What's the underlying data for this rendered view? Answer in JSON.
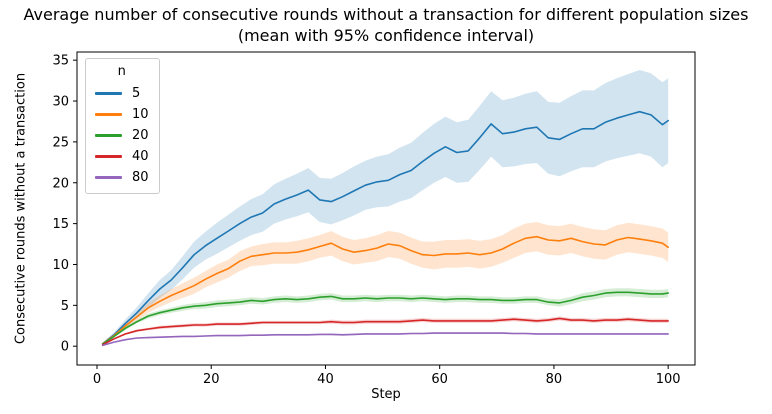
{
  "chart_data": {
    "type": "line",
    "title": "Average number of consecutive rounds without a transaction for different population sizes",
    "subtitle": "(mean with 95% confidence interval)",
    "xlabel": "Step",
    "ylabel": "Consecutive rounds without a transaction",
    "legend": {
      "title": "n",
      "position": "upper-left",
      "entries": [
        "5",
        "10",
        "20",
        "40",
        "80"
      ]
    },
    "grid": false,
    "xlim": [
      -3.5,
      104.7
    ],
    "ylim": [
      -2.3,
      36.0
    ],
    "xticks": [
      0,
      20,
      40,
      60,
      80,
      100
    ],
    "yticks": [
      0,
      5,
      10,
      15,
      20,
      25,
      30,
      35
    ],
    "band_opacity": 0.2,
    "x": [
      1,
      3,
      5,
      7,
      9,
      11,
      13,
      15,
      17,
      19,
      21,
      23,
      25,
      27,
      29,
      31,
      33,
      35,
      37,
      39,
      41,
      43,
      45,
      47,
      49,
      51,
      53,
      55,
      57,
      59,
      61,
      63,
      65,
      67,
      69,
      71,
      73,
      75,
      77,
      79,
      81,
      83,
      85,
      87,
      89,
      91,
      93,
      95,
      97,
      99,
      100
    ],
    "series": [
      {
        "name": "5",
        "color": "#1f77b4",
        "values": [
          0.3,
          1.4,
          2.8,
          4.1,
          5.6,
          7.0,
          8.1,
          9.6,
          11.2,
          12.3,
          13.2,
          14.1,
          15.0,
          15.8,
          16.3,
          17.4,
          18.0,
          18.5,
          19.1,
          17.9,
          17.7,
          18.3,
          19.0,
          19.7,
          20.1,
          20.3,
          21.0,
          21.5,
          22.6,
          23.6,
          24.4,
          23.7,
          23.9,
          25.5,
          27.2,
          26.0,
          26.2,
          26.6,
          26.8,
          25.5,
          25.3,
          26.0,
          26.6,
          26.6,
          27.4,
          27.9,
          28.3,
          28.7,
          28.3,
          27.1,
          27.6
        ],
        "ci": [
          0.1,
          0.3,
          0.5,
          0.7,
          0.9,
          1.1,
          1.2,
          1.4,
          1.6,
          1.7,
          1.9,
          2.0,
          2.1,
          2.2,
          2.3,
          2.4,
          2.5,
          2.6,
          2.7,
          2.7,
          2.8,
          2.9,
          3.0,
          3.0,
          3.1,
          3.2,
          3.3,
          3.4,
          3.5,
          3.6,
          3.7,
          3.7,
          3.8,
          3.9,
          4.0,
          4.1,
          4.2,
          4.3,
          4.4,
          4.4,
          4.5,
          4.6,
          4.7,
          4.7,
          4.8,
          4.9,
          5.0,
          5.1,
          5.1,
          5.2,
          5.2
        ]
      },
      {
        "name": "10",
        "color": "#ff7f0e",
        "values": [
          0.3,
          1.3,
          2.5,
          3.6,
          4.7,
          5.5,
          6.2,
          6.8,
          7.4,
          8.2,
          8.9,
          9.5,
          10.4,
          11.0,
          11.2,
          11.4,
          11.4,
          11.5,
          11.8,
          12.2,
          12.6,
          11.9,
          11.5,
          11.7,
          12.0,
          12.5,
          12.3,
          11.7,
          11.2,
          11.1,
          11.3,
          11.3,
          11.4,
          11.2,
          11.4,
          11.9,
          12.6,
          13.2,
          13.4,
          13.0,
          12.9,
          13.2,
          12.8,
          12.5,
          12.4,
          13.0,
          13.3,
          13.1,
          12.9,
          12.6,
          12.1
        ],
        "ci": [
          0.1,
          0.2,
          0.4,
          0.5,
          0.6,
          0.7,
          0.8,
          0.9,
          1.0,
          1.0,
          1.1,
          1.1,
          1.2,
          1.2,
          1.3,
          1.3,
          1.3,
          1.4,
          1.4,
          1.4,
          1.5,
          1.5,
          1.5,
          1.5,
          1.6,
          1.6,
          1.6,
          1.6,
          1.6,
          1.7,
          1.7,
          1.7,
          1.7,
          1.7,
          1.7,
          1.7,
          1.8,
          1.8,
          1.8,
          1.8,
          1.8,
          1.8,
          1.8,
          1.8,
          1.8,
          1.8,
          1.8,
          1.8,
          1.8,
          1.8,
          1.8
        ]
      },
      {
        "name": "20",
        "color": "#2ca02c",
        "values": [
          0.3,
          1.2,
          2.2,
          3.0,
          3.7,
          4.1,
          4.4,
          4.7,
          4.9,
          5.0,
          5.2,
          5.3,
          5.4,
          5.6,
          5.5,
          5.7,
          5.8,
          5.7,
          5.8,
          6.0,
          6.1,
          5.8,
          5.8,
          5.9,
          5.8,
          5.9,
          5.9,
          5.8,
          5.9,
          5.8,
          5.7,
          5.8,
          5.8,
          5.7,
          5.7,
          5.6,
          5.6,
          5.7,
          5.7,
          5.4,
          5.3,
          5.6,
          6.0,
          6.2,
          6.5,
          6.6,
          6.6,
          6.5,
          6.4,
          6.4,
          6.5
        ],
        "ci": [
          0.1,
          0.1,
          0.2,
          0.2,
          0.3,
          0.3,
          0.3,
          0.35,
          0.35,
          0.4,
          0.4,
          0.4,
          0.4,
          0.4,
          0.4,
          0.4,
          0.4,
          0.4,
          0.4,
          0.4,
          0.4,
          0.4,
          0.4,
          0.4,
          0.4,
          0.4,
          0.4,
          0.4,
          0.4,
          0.4,
          0.4,
          0.4,
          0.4,
          0.4,
          0.4,
          0.4,
          0.4,
          0.4,
          0.4,
          0.4,
          0.45,
          0.45,
          0.5,
          0.5,
          0.5,
          0.5,
          0.5,
          0.5,
          0.5,
          0.5,
          0.5
        ]
      },
      {
        "name": "40",
        "color": "#d62728",
        "values": [
          0.2,
          0.9,
          1.5,
          1.9,
          2.1,
          2.3,
          2.4,
          2.5,
          2.6,
          2.6,
          2.7,
          2.7,
          2.7,
          2.8,
          2.9,
          2.9,
          2.9,
          2.9,
          2.9,
          2.9,
          3.0,
          2.9,
          2.9,
          3.0,
          3.0,
          3.0,
          3.0,
          3.1,
          3.2,
          3.1,
          3.1,
          3.1,
          3.1,
          3.1,
          3.1,
          3.2,
          3.3,
          3.2,
          3.1,
          3.2,
          3.4,
          3.2,
          3.2,
          3.1,
          3.2,
          3.2,
          3.3,
          3.2,
          3.1,
          3.1,
          3.1
        ],
        "ci": [
          0.05,
          0.1,
          0.1,
          0.15,
          0.15,
          0.2,
          0.2,
          0.2,
          0.2,
          0.2,
          0.2,
          0.2,
          0.2,
          0.2,
          0.2,
          0.2,
          0.2,
          0.2,
          0.2,
          0.2,
          0.25,
          0.25,
          0.25,
          0.25,
          0.25,
          0.25,
          0.25,
          0.25,
          0.25,
          0.25,
          0.25,
          0.25,
          0.25,
          0.25,
          0.25,
          0.25,
          0.25,
          0.25,
          0.25,
          0.25,
          0.25,
          0.25,
          0.25,
          0.25,
          0.25,
          0.25,
          0.25,
          0.25,
          0.25,
          0.25,
          0.25
        ]
      },
      {
        "name": "80",
        "color": "#9467bd",
        "values": [
          0.1,
          0.5,
          0.8,
          1.0,
          1.05,
          1.1,
          1.15,
          1.2,
          1.2,
          1.25,
          1.3,
          1.3,
          1.3,
          1.35,
          1.35,
          1.4,
          1.4,
          1.4,
          1.4,
          1.45,
          1.45,
          1.4,
          1.45,
          1.5,
          1.5,
          1.5,
          1.5,
          1.55,
          1.55,
          1.6,
          1.6,
          1.6,
          1.6,
          1.6,
          1.6,
          1.6,
          1.55,
          1.55,
          1.5,
          1.5,
          1.5,
          1.5,
          1.5,
          1.5,
          1.5,
          1.5,
          1.5,
          1.5,
          1.5,
          1.5,
          1.5
        ],
        "ci": [
          0.05,
          0.05,
          0.08,
          0.08,
          0.1,
          0.1,
          0.1,
          0.1,
          0.1,
          0.1,
          0.1,
          0.1,
          0.1,
          0.1,
          0.1,
          0.1,
          0.1,
          0.1,
          0.1,
          0.1,
          0.12,
          0.12,
          0.12,
          0.12,
          0.12,
          0.12,
          0.12,
          0.12,
          0.12,
          0.12,
          0.12,
          0.12,
          0.12,
          0.12,
          0.12,
          0.12,
          0.12,
          0.12,
          0.12,
          0.12,
          0.12,
          0.12,
          0.12,
          0.12,
          0.12,
          0.12,
          0.12,
          0.12,
          0.12,
          0.12,
          0.12
        ]
      }
    ]
  }
}
